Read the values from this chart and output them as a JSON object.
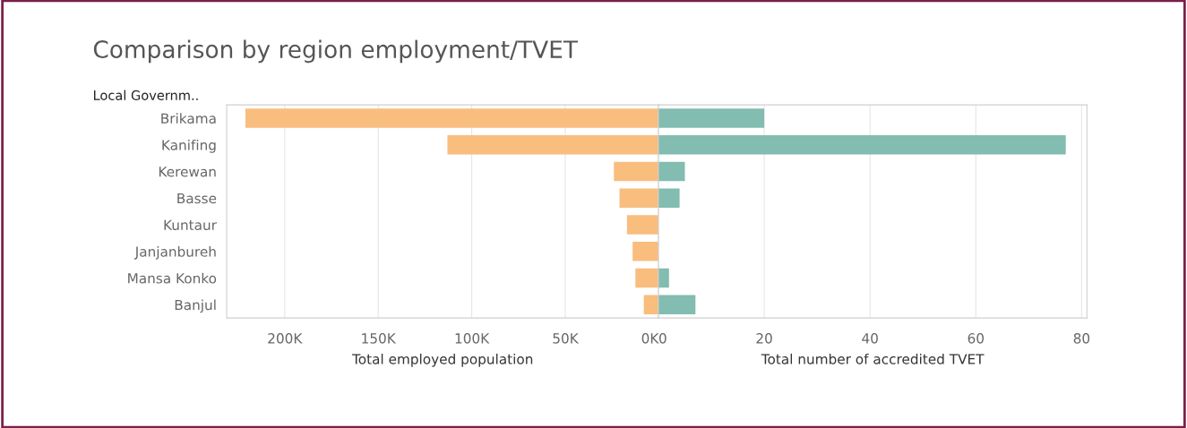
{
  "chart_data": [
    {
      "type": "bar",
      "orientation": "horizontal",
      "title": "Comparison by region employment/TVET",
      "ylabel": "Local Governm..",
      "xlabel": "Total employed population",
      "categories": [
        "Brikama",
        "Kanifing",
        "Kerewan",
        "Basse",
        "Kuntaur",
        "Janjanbureh",
        "Mansa Konko",
        "Banjul"
      ],
      "values": [
        221000,
        113000,
        24000,
        21000,
        17000,
        14000,
        12500,
        8000
      ],
      "color": "#f9bd7e",
      "xlim": [
        231000,
        0
      ],
      "xticks": [
        {
          "value": 200000,
          "label": "200K"
        },
        {
          "value": 150000,
          "label": "150K"
        },
        {
          "value": 100000,
          "label": "100K"
        },
        {
          "value": 50000,
          "label": "50K"
        },
        {
          "value": 0,
          "label": "0K"
        }
      ],
      "grid": "x"
    },
    {
      "type": "bar",
      "orientation": "horizontal",
      "xlabel": "Total number of accredited TVET",
      "categories": [
        null,
        null,
        null,
        null,
        null,
        null,
        null,
        null
      ],
      "values": [
        20,
        77,
        5,
        4,
        0,
        0,
        2,
        7
      ],
      "color": "#83bcb0",
      "xlim": [
        0,
        81
      ],
      "xticks": [
        0,
        20,
        40,
        60,
        80
      ],
      "grid": "x",
      "tick_labels": "x"
    }
  ]
}
